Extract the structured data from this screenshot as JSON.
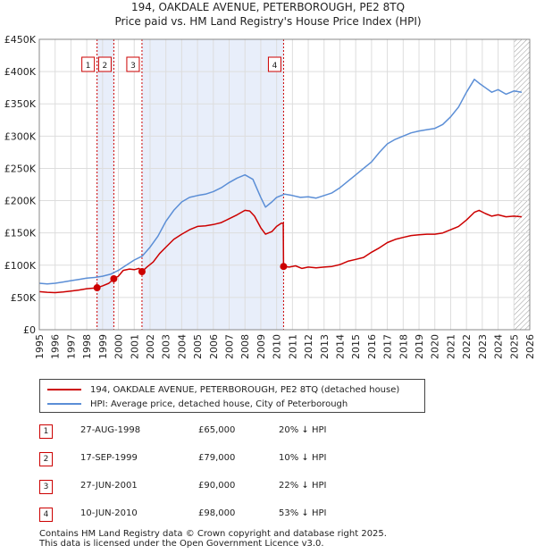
{
  "chart_data": {
    "type": "line",
    "title": "194, OAKDALE AVENUE, PETERBOROUGH, PE2 8TQ",
    "subtitle": "Price paid vs. HM Land Registry's House Price Index (HPI)",
    "ylim": [
      0,
      450000
    ],
    "yticks": [
      {
        "value": 0,
        "label": "£0"
      },
      {
        "value": 50000,
        "label": "£50K"
      },
      {
        "value": 100000,
        "label": "£100K"
      },
      {
        "value": 150000,
        "label": "£150K"
      },
      {
        "value": 200000,
        "label": "£200K"
      },
      {
        "value": 250000,
        "label": "£250K"
      },
      {
        "value": 300000,
        "label": "£300K"
      },
      {
        "value": 350000,
        "label": "£350K"
      },
      {
        "value": 400000,
        "label": "£400K"
      },
      {
        "value": 450000,
        "label": "£450K"
      }
    ],
    "xlim": [
      1995,
      2026
    ],
    "xticks": [
      "1995",
      "1996",
      "1997",
      "1998",
      "1999",
      "2000",
      "2001",
      "2002",
      "2003",
      "2004",
      "2005",
      "2006",
      "2007",
      "2008",
      "2009",
      "2010",
      "2011",
      "2012",
      "2013",
      "2014",
      "2015",
      "2016",
      "2017",
      "2018",
      "2019",
      "2020",
      "2021",
      "2022",
      "2023",
      "2024",
      "2025",
      "2026"
    ],
    "shaded_ranges": [
      [
        1998.65,
        1999.71
      ],
      [
        2001.49,
        2010.44
      ]
    ],
    "hatch_from": 2025.0,
    "series": [
      {
        "name": "194, OAKDALE AVENUE, PETERBOROUGH, PE2 8TQ (detached house)",
        "color": "#cc0000",
        "points": [
          [
            1995.0,
            59000
          ],
          [
            1995.5,
            58000
          ],
          [
            1996.0,
            57500
          ],
          [
            1996.5,
            58500
          ],
          [
            1997.0,
            60000
          ],
          [
            1997.5,
            61500
          ],
          [
            1998.0,
            63500
          ],
          [
            1998.65,
            65000
          ],
          [
            1999.0,
            68000
          ],
          [
            1999.4,
            72000
          ],
          [
            1999.71,
            79000
          ],
          [
            2000.0,
            83000
          ],
          [
            2000.3,
            92000
          ],
          [
            2000.7,
            94000
          ],
          [
            2001.0,
            93000
          ],
          [
            2001.3,
            95000
          ],
          [
            2001.49,
            90000
          ],
          [
            2001.8,
            97000
          ],
          [
            2002.2,
            105000
          ],
          [
            2002.6,
            118000
          ],
          [
            2003.0,
            128000
          ],
          [
            2003.5,
            140000
          ],
          [
            2004.0,
            148000
          ],
          [
            2004.5,
            155000
          ],
          [
            2005.0,
            160000
          ],
          [
            2005.5,
            161000
          ],
          [
            2006.0,
            163000
          ],
          [
            2006.5,
            166000
          ],
          [
            2007.0,
            172000
          ],
          [
            2007.5,
            178000
          ],
          [
            2008.0,
            185000
          ],
          [
            2008.3,
            184000
          ],
          [
            2008.6,
            176000
          ],
          [
            2009.0,
            158000
          ],
          [
            2009.3,
            148000
          ],
          [
            2009.7,
            152000
          ],
          [
            2010.0,
            160000
          ],
          [
            2010.3,
            165000
          ],
          [
            2010.42,
            165000
          ],
          [
            2010.44,
            98000
          ],
          [
            2010.8,
            97000
          ],
          [
            2011.2,
            99000
          ],
          [
            2011.6,
            95000
          ],
          [
            2012.0,
            97000
          ],
          [
            2012.5,
            96000
          ],
          [
            2013.0,
            97000
          ],
          [
            2013.5,
            98000
          ],
          [
            2014.0,
            101000
          ],
          [
            2014.5,
            106000
          ],
          [
            2015.0,
            109000
          ],
          [
            2015.5,
            112000
          ],
          [
            2016.0,
            120000
          ],
          [
            2016.5,
            127000
          ],
          [
            2017.0,
            135000
          ],
          [
            2017.5,
            140000
          ],
          [
            2018.0,
            143000
          ],
          [
            2018.5,
            146000
          ],
          [
            2019.0,
            147000
          ],
          [
            2019.5,
            148000
          ],
          [
            2020.0,
            148000
          ],
          [
            2020.5,
            150000
          ],
          [
            2021.0,
            155000
          ],
          [
            2021.5,
            160000
          ],
          [
            2022.0,
            170000
          ],
          [
            2022.5,
            182000
          ],
          [
            2022.8,
            185000
          ],
          [
            2023.2,
            180000
          ],
          [
            2023.6,
            176000
          ],
          [
            2024.0,
            178000
          ],
          [
            2024.5,
            175000
          ],
          [
            2025.0,
            176000
          ],
          [
            2025.5,
            175000
          ]
        ]
      },
      {
        "name": "HPI: Average price, detached house, City of Peterborough",
        "color": "#5b8ed6",
        "points": [
          [
            1995.0,
            72000
          ],
          [
            1995.5,
            71000
          ],
          [
            1996.0,
            72000
          ],
          [
            1996.5,
            74000
          ],
          [
            1997.0,
            76000
          ],
          [
            1997.5,
            78000
          ],
          [
            1998.0,
            80000
          ],
          [
            1998.5,
            81000
          ],
          [
            1999.0,
            83000
          ],
          [
            1999.5,
            86000
          ],
          [
            2000.0,
            92000
          ],
          [
            2000.5,
            100000
          ],
          [
            2001.0,
            108000
          ],
          [
            2001.5,
            114000
          ],
          [
            2002.0,
            128000
          ],
          [
            2002.5,
            145000
          ],
          [
            2003.0,
            168000
          ],
          [
            2003.5,
            185000
          ],
          [
            2004.0,
            198000
          ],
          [
            2004.5,
            205000
          ],
          [
            2005.0,
            208000
          ],
          [
            2005.5,
            210000
          ],
          [
            2006.0,
            214000
          ],
          [
            2006.5,
            220000
          ],
          [
            2007.0,
            228000
          ],
          [
            2007.5,
            235000
          ],
          [
            2008.0,
            240000
          ],
          [
            2008.5,
            233000
          ],
          [
            2009.0,
            205000
          ],
          [
            2009.3,
            190000
          ],
          [
            2009.7,
            198000
          ],
          [
            2010.0,
            205000
          ],
          [
            2010.5,
            210000
          ],
          [
            2011.0,
            208000
          ],
          [
            2011.5,
            205000
          ],
          [
            2012.0,
            206000
          ],
          [
            2012.5,
            204000
          ],
          [
            2013.0,
            208000
          ],
          [
            2013.5,
            212000
          ],
          [
            2014.0,
            220000
          ],
          [
            2014.5,
            230000
          ],
          [
            2015.0,
            240000
          ],
          [
            2015.5,
            250000
          ],
          [
            2016.0,
            260000
          ],
          [
            2016.5,
            275000
          ],
          [
            2017.0,
            288000
          ],
          [
            2017.5,
            295000
          ],
          [
            2018.0,
            300000
          ],
          [
            2018.5,
            305000
          ],
          [
            2019.0,
            308000
          ],
          [
            2019.5,
            310000
          ],
          [
            2020.0,
            312000
          ],
          [
            2020.5,
            318000
          ],
          [
            2021.0,
            330000
          ],
          [
            2021.5,
            345000
          ],
          [
            2022.0,
            368000
          ],
          [
            2022.5,
            388000
          ],
          [
            2022.8,
            382000
          ],
          [
            2023.2,
            375000
          ],
          [
            2023.6,
            368000
          ],
          [
            2024.0,
            372000
          ],
          [
            2024.5,
            365000
          ],
          [
            2025.0,
            370000
          ],
          [
            2025.5,
            368000
          ]
        ]
      }
    ],
    "markers": [
      {
        "label": "1",
        "x": 1998.65,
        "y": 65000
      },
      {
        "label": "2",
        "x": 1999.71,
        "y": 79000
      },
      {
        "label": "3",
        "x": 2001.49,
        "y": 90000
      },
      {
        "label": "4",
        "x": 2010.44,
        "y": 98000
      }
    ]
  },
  "legend": [
    {
      "label": "194, OAKDALE AVENUE, PETERBOROUGH, PE2 8TQ (detached house)",
      "color": "#cc0000"
    },
    {
      "label": "HPI: Average price, detached house, City of Peterborough",
      "color": "#5b8ed6"
    }
  ],
  "sales": [
    {
      "num": "1",
      "date": "27-AUG-1998",
      "price": "£65,000",
      "hpi": "20% ↓ HPI"
    },
    {
      "num": "2",
      "date": "17-SEP-1999",
      "price": "£79,000",
      "hpi": "10% ↓ HPI"
    },
    {
      "num": "3",
      "date": "27-JUN-2001",
      "price": "£90,000",
      "hpi": "22% ↓ HPI"
    },
    {
      "num": "4",
      "date": "10-JUN-2010",
      "price": "£98,000",
      "hpi": "53% ↓ HPI"
    }
  ],
  "footer": {
    "line1": "Contains HM Land Registry data © Crown copyright and database right 2025.",
    "line2": "This data is licensed under the Open Government Licence v3.0."
  }
}
